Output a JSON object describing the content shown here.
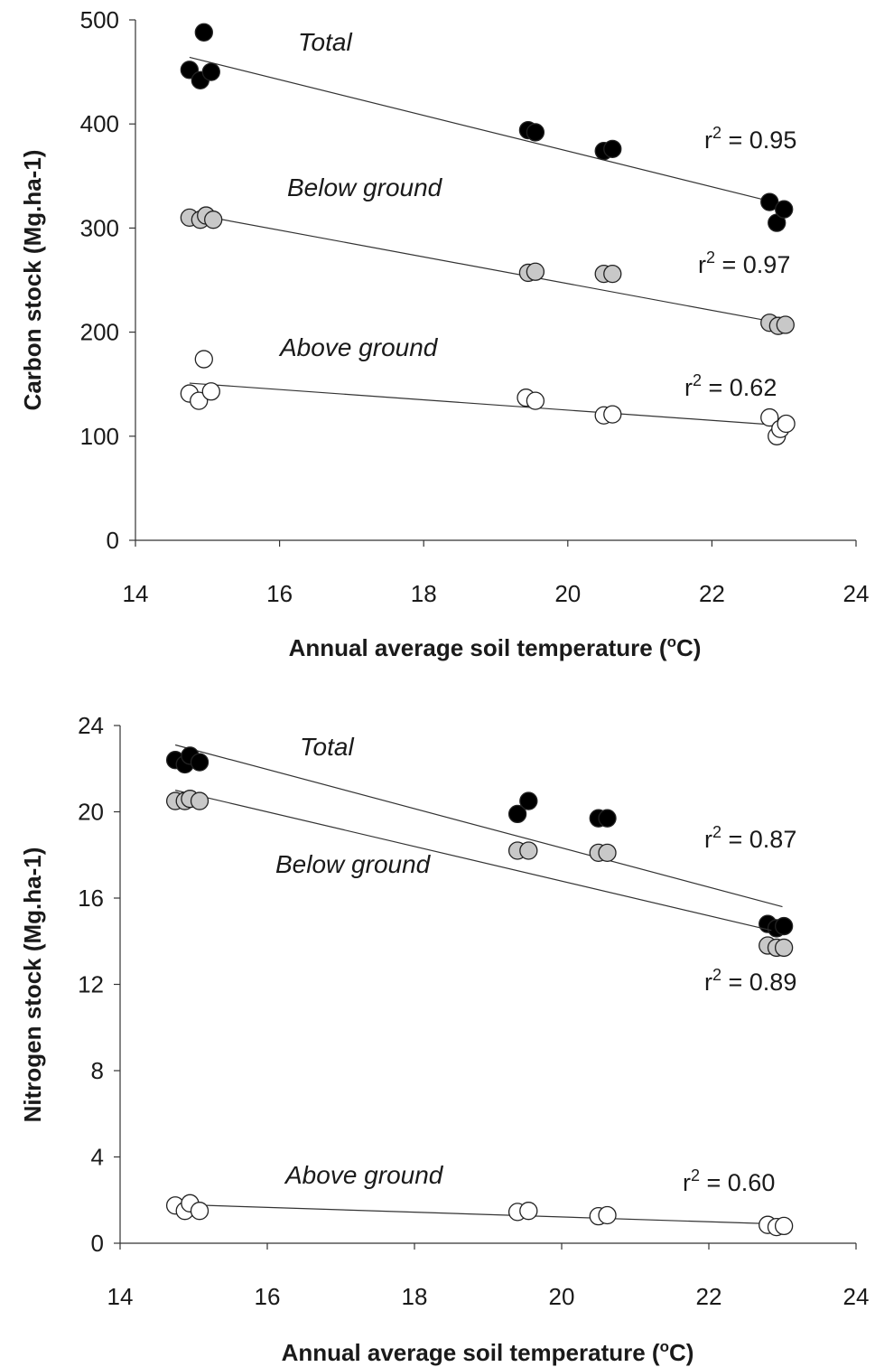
{
  "chart_data": [
    {
      "type": "scatter",
      "title": "",
      "xlabel": "Annual average soil temperature (°C)",
      "ylabel": "Carbon stock (Mg.ha-1)",
      "xlim": [
        14,
        24
      ],
      "ylim": [
        0,
        500
      ],
      "xticks": [
        "14",
        "16",
        "18",
        "20",
        "22",
        "24"
      ],
      "yticks": [
        "0",
        "100",
        "200",
        "300",
        "400",
        "500"
      ],
      "grid": false,
      "series": [
        {
          "name": "Total",
          "fill": "#000000",
          "r2": "r² = 0.95",
          "points": [
            [
              14.75,
              452
            ],
            [
              14.9,
              442
            ],
            [
              14.95,
              488
            ],
            [
              15.05,
              450
            ],
            [
              19.45,
              394
            ],
            [
              19.55,
              392
            ],
            [
              20.5,
              374
            ],
            [
              20.62,
              376
            ],
            [
              22.8,
              325
            ],
            [
              22.9,
              305
            ],
            [
              23.0,
              318
            ]
          ],
          "trend": [
            [
              14.75,
              464
            ],
            [
              22.85,
              325
            ]
          ]
        },
        {
          "name": "Below ground",
          "fill": "#c8c8c8",
          "r2": "r² = 0.97",
          "points": [
            [
              14.75,
              310
            ],
            [
              14.9,
              308
            ],
            [
              14.98,
              312
            ],
            [
              15.08,
              308
            ],
            [
              19.45,
              257
            ],
            [
              19.55,
              258
            ],
            [
              20.5,
              256
            ],
            [
              20.62,
              256
            ],
            [
              22.8,
              209
            ],
            [
              22.92,
              206
            ],
            [
              23.02,
              207
            ]
          ],
          "trend": [
            [
              14.75,
              314
            ],
            [
              22.85,
              210
            ]
          ]
        },
        {
          "name": "Above ground",
          "fill": "#ffffff",
          "r2": "r² = 0.62",
          "points": [
            [
              14.75,
              141
            ],
            [
              14.88,
              134
            ],
            [
              14.95,
              174
            ],
            [
              15.05,
              143
            ],
            [
              19.42,
              137
            ],
            [
              19.55,
              134
            ],
            [
              20.5,
              120
            ],
            [
              20.62,
              121
            ],
            [
              22.8,
              118
            ],
            [
              22.9,
              100
            ],
            [
              22.95,
              107
            ],
            [
              23.03,
              112
            ]
          ],
          "trend": [
            [
              14.75,
              151
            ],
            [
              22.85,
              111
            ]
          ]
        }
      ]
    },
    {
      "type": "scatter",
      "title": "",
      "xlabel": "Annual average soil temperature (°C)",
      "ylabel": "Nitrogen  stock (Mg.ha-1)",
      "xlim": [
        14,
        24
      ],
      "ylim": [
        0,
        24
      ],
      "xticks": [
        "14",
        "16",
        "18",
        "20",
        "22",
        "24"
      ],
      "yticks": [
        "0",
        "4",
        "8",
        "12",
        "16",
        "20",
        "24"
      ],
      "grid": false,
      "series": [
        {
          "name": "Total",
          "fill": "#000000",
          "r2": "r² = 0.87",
          "points": [
            [
              14.75,
              22.4
            ],
            [
              14.88,
              22.2
            ],
            [
              14.95,
              22.6
            ],
            [
              15.08,
              22.3
            ],
            [
              19.4,
              19.9
            ],
            [
              19.55,
              20.5
            ],
            [
              20.5,
              19.7
            ],
            [
              20.62,
              19.7
            ],
            [
              22.8,
              14.8
            ],
            [
              22.92,
              14.6
            ],
            [
              23.02,
              14.7
            ]
          ],
          "trend": [
            [
              14.75,
              23.1
            ],
            [
              23.0,
              15.6
            ]
          ]
        },
        {
          "name": "Below ground",
          "fill": "#c8c8c8",
          "r2": "r² = 0.89",
          "points": [
            [
              14.75,
              20.5
            ],
            [
              14.88,
              20.5
            ],
            [
              14.95,
              20.6
            ],
            [
              15.08,
              20.5
            ],
            [
              19.4,
              18.2
            ],
            [
              19.55,
              18.2
            ],
            [
              20.5,
              18.1
            ],
            [
              20.62,
              18.1
            ],
            [
              22.8,
              13.8
            ],
            [
              22.92,
              13.7
            ],
            [
              23.02,
              13.7
            ]
          ],
          "trend": [
            [
              14.75,
              21.0
            ],
            [
              22.85,
              14.5
            ]
          ]
        },
        {
          "name": "Above ground",
          "fill": "#ffffff",
          "r2": "r² = 0.60",
          "points": [
            [
              14.75,
              1.75
            ],
            [
              14.88,
              1.5
            ],
            [
              14.95,
              1.85
            ],
            [
              15.08,
              1.5
            ],
            [
              19.4,
              1.45
            ],
            [
              19.55,
              1.5
            ],
            [
              20.5,
              1.25
            ],
            [
              20.62,
              1.3
            ],
            [
              22.8,
              0.85
            ],
            [
              22.92,
              0.75
            ],
            [
              23.02,
              0.8
            ]
          ],
          "trend": [
            [
              14.75,
              1.8
            ],
            [
              22.85,
              0.9
            ]
          ]
        }
      ]
    }
  ]
}
